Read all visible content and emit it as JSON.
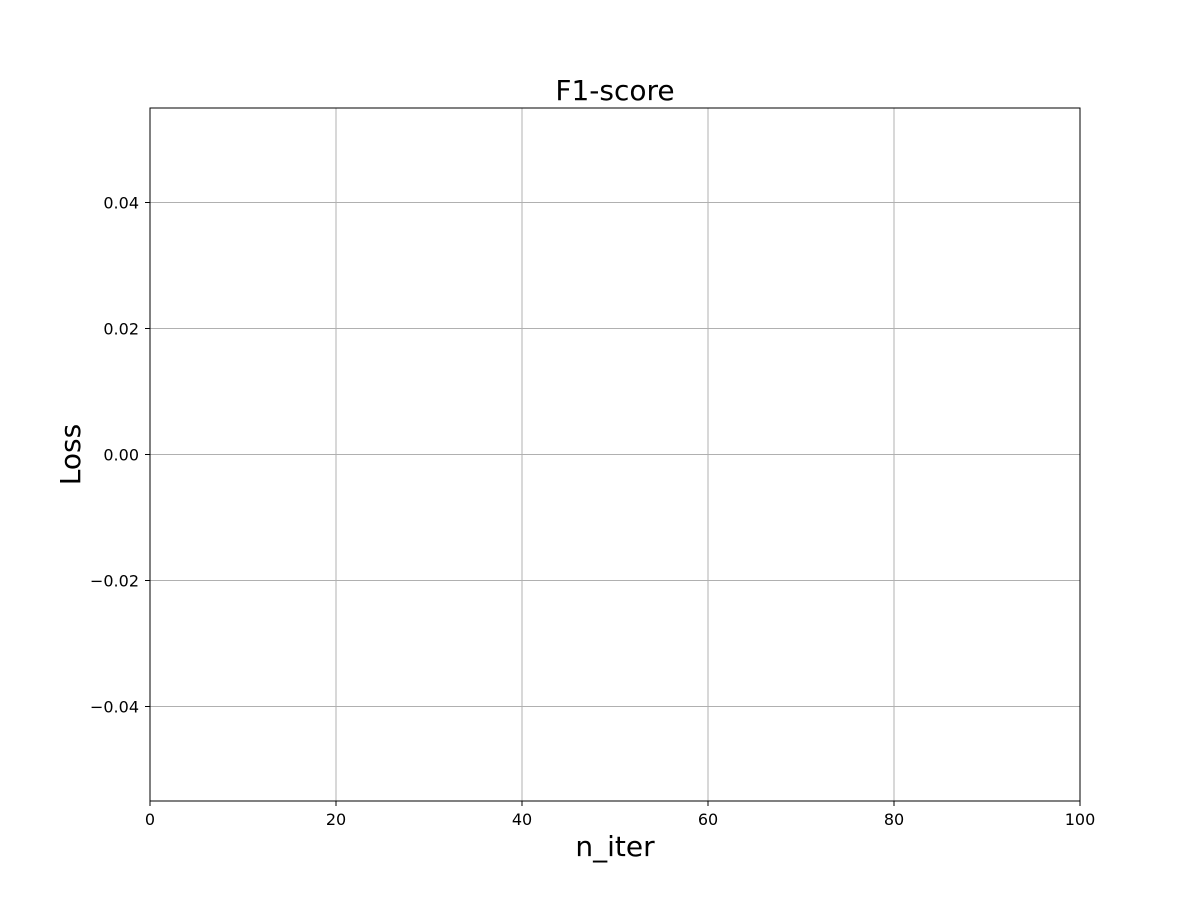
{
  "chart_data": {
    "type": "line",
    "title": "F1-score",
    "xlabel": "n_iter",
    "ylabel": "Loss",
    "xlim": [
      0,
      100
    ],
    "ylim": [
      -0.055,
      0.055
    ],
    "x_ticks": [
      0,
      20,
      40,
      60,
      80,
      100
    ],
    "x_tick_labels": [
      "0",
      "20",
      "40",
      "60",
      "80",
      "100"
    ],
    "y_ticks": [
      -0.04,
      -0.02,
      0.0,
      0.02,
      0.04
    ],
    "y_tick_labels": [
      "−0.04",
      "−0.02",
      "0.00",
      "0.02",
      "0.04"
    ],
    "grid": true,
    "series": [],
    "colors": {
      "grid": "#b0b0b0",
      "axes": "#000000",
      "background": "#ffffff"
    }
  }
}
